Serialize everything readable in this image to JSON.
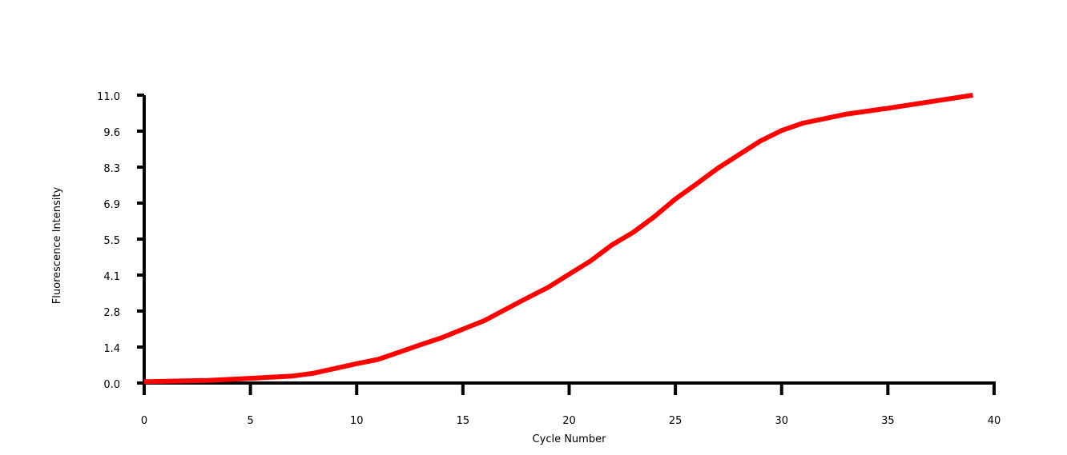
{
  "chart_data": {
    "type": "line",
    "title": "",
    "xlabel": "Cycle Number",
    "ylabel": "Fluorescence Intensity",
    "xlim": [
      0,
      40
    ],
    "ylim": [
      0,
      11
    ],
    "grid": false,
    "x_ticks": [
      0,
      5,
      10,
      15,
      20,
      25,
      30,
      35,
      40
    ],
    "x_tick_labels": [
      "0",
      "5",
      "10",
      "15",
      "20",
      "25",
      "30",
      "35",
      "40"
    ],
    "y_ticks": [
      0,
      1.375,
      2.75,
      4.125,
      5.5,
      6.875,
      8.25,
      9.625,
      11
    ],
    "y_tick_labels": [
      "0.0",
      "1.4",
      "2.8",
      "4.1",
      "5.5",
      "6.9",
      "8.3",
      "9.6",
      "11.0"
    ],
    "line_color": "#ff0000",
    "axis_color": "#000000",
    "series": [
      {
        "x": [
          0,
          3,
          5,
          7,
          8,
          9,
          10,
          11,
          12,
          13,
          14,
          15,
          16,
          17,
          18,
          19,
          20,
          21,
          22,
          23,
          24,
          25,
          26,
          27,
          28,
          29,
          30,
          31,
          33,
          35,
          37,
          39
        ],
        "y": [
          0.05,
          0.1,
          0.18,
          0.27,
          0.38,
          0.56,
          0.74,
          0.9,
          1.18,
          1.46,
          1.73,
          2.06,
          2.38,
          2.81,
          3.24,
          3.65,
          4.16,
          4.66,
          5.27,
          5.75,
          6.35,
          7.03,
          7.61,
          8.21,
          8.73,
          9.25,
          9.65,
          9.93,
          10.27,
          10.5,
          10.75,
          11.0
        ]
      }
    ]
  }
}
